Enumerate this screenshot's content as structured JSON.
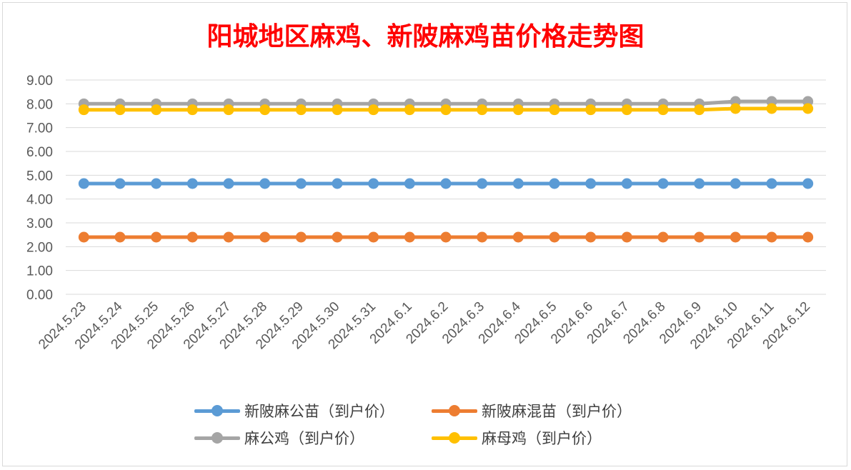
{
  "chart_data": {
    "type": "line",
    "title": "阳城地区麻鸡、新陂麻鸡苗价格走势图",
    "categories": [
      "2024.5.23",
      "2024.5.24",
      "2024.5.25",
      "2024.5.26",
      "2024.5.27",
      "2024.5.28",
      "2024.5.29",
      "2024.5.30",
      "2024.5.31",
      "2024.6.1",
      "2024.6.2",
      "2024.6.3",
      "2024.6.4",
      "2024.6.5",
      "2024.6.6",
      "2024.6.7",
      "2024.6.8",
      "2024.6.9",
      "2024.6.10",
      "2024.6.11",
      "2024.6.12"
    ],
    "ylim": [
      0,
      9
    ],
    "yticks": [
      "0.00",
      "1.00",
      "2.00",
      "3.00",
      "4.00",
      "5.00",
      "6.00",
      "7.00",
      "8.00",
      "9.00"
    ],
    "grid": true,
    "legend_position": "bottom",
    "series": [
      {
        "name": "新陂麻公苗（到户价）",
        "color": "#5b9bd5",
        "values": [
          4.65,
          4.65,
          4.65,
          4.65,
          4.65,
          4.65,
          4.65,
          4.65,
          4.65,
          4.65,
          4.65,
          4.65,
          4.65,
          4.65,
          4.65,
          4.65,
          4.65,
          4.65,
          4.65,
          4.65,
          4.65
        ]
      },
      {
        "name": "新陂麻混苗（到户价）",
        "color": "#ed7d31",
        "values": [
          2.4,
          2.4,
          2.4,
          2.4,
          2.4,
          2.4,
          2.4,
          2.4,
          2.4,
          2.4,
          2.4,
          2.4,
          2.4,
          2.4,
          2.4,
          2.4,
          2.4,
          2.4,
          2.4,
          2.4,
          2.4
        ]
      },
      {
        "name": "麻公鸡（到户价）",
        "color": "#a5a5a5",
        "values": [
          8.0,
          8.0,
          8.0,
          8.0,
          8.0,
          8.0,
          8.0,
          8.0,
          8.0,
          8.0,
          8.0,
          8.0,
          8.0,
          8.0,
          8.0,
          8.0,
          8.0,
          8.0,
          8.1,
          8.1,
          8.1
        ]
      },
      {
        "name": "麻母鸡（到户价）",
        "color": "#ffc000",
        "values": [
          7.75,
          7.75,
          7.75,
          7.75,
          7.75,
          7.75,
          7.75,
          7.75,
          7.75,
          7.75,
          7.75,
          7.75,
          7.75,
          7.75,
          7.75,
          7.75,
          7.75,
          7.75,
          7.8,
          7.8,
          7.8
        ]
      }
    ]
  }
}
